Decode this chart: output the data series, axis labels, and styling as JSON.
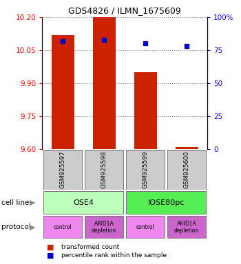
{
  "title": "GDS4826 / ILMN_1675609",
  "samples": [
    "GSM925597",
    "GSM925598",
    "GSM925599",
    "GSM925600"
  ],
  "bar_values": [
    10.12,
    10.2,
    9.95,
    9.61
  ],
  "bar_baseline": 9.6,
  "percentile_values": [
    82,
    83,
    80,
    78
  ],
  "ylim_left": [
    9.6,
    10.2
  ],
  "ylim_right": [
    0,
    100
  ],
  "yticks_left": [
    9.6,
    9.75,
    9.9,
    10.05,
    10.2
  ],
  "yticks_right": [
    0,
    25,
    50,
    75,
    100
  ],
  "ytick_labels_right": [
    "0",
    "25",
    "50",
    "75",
    "100%"
  ],
  "bar_color": "#cc2200",
  "dot_color": "#0000cc",
  "cell_lines": [
    [
      "OSE4",
      0,
      2
    ],
    [
      "IOSE80pc",
      2,
      4
    ]
  ],
  "cell_line_colors": [
    "#bbffbb",
    "#55ee55"
  ],
  "protocols": [
    [
      "control",
      0,
      1
    ],
    [
      "ARID1A\ndepletion",
      1,
      2
    ],
    [
      "control",
      2,
      3
    ],
    [
      "ARID1A\ndepletion",
      3,
      4
    ]
  ],
  "protocol_colors": [
    "#ee88ee",
    "#cc66cc",
    "#ee88ee",
    "#cc66cc"
  ],
  "grid_color": "#888888",
  "box_color": "#cccccc",
  "bg_color": "#ffffff"
}
